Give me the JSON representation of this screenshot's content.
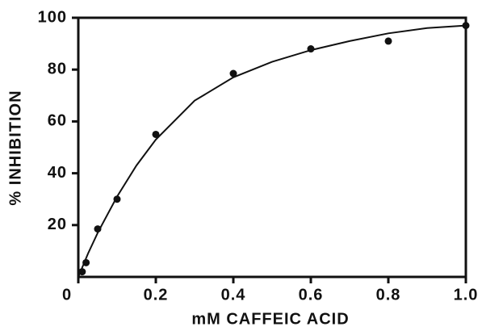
{
  "chart_data": {
    "type": "scatter",
    "xlabel": "mM CAFFEIC ACID",
    "ylabel": "% INHIBITION",
    "x": [
      0.01,
      0.02,
      0.05,
      0.1,
      0.2,
      0.4,
      0.6,
      0.8,
      1.0
    ],
    "values": [
      2,
      5.5,
      18.5,
      30,
      55,
      78.5,
      88,
      91,
      97
    ],
    "color": "#111111",
    "curve": {
      "x": [
        0,
        0.025,
        0.05,
        0.1,
        0.15,
        0.2,
        0.3,
        0.4,
        0.5,
        0.6,
        0.7,
        0.8,
        0.9,
        1.0
      ],
      "values": [
        0,
        9,
        17,
        31,
        43,
        53,
        68,
        77,
        83,
        87.5,
        91,
        94,
        96,
        97
      ]
    },
    "xlim": [
      0,
      1
    ],
    "ylim": [
      0,
      100
    ],
    "xticks": [
      0,
      0.2,
      0.4,
      0.6,
      0.8,
      {
        "value": 1,
        "label": "1.0"
      }
    ],
    "yticks": [
      20,
      40,
      60,
      80,
      100
    ]
  }
}
